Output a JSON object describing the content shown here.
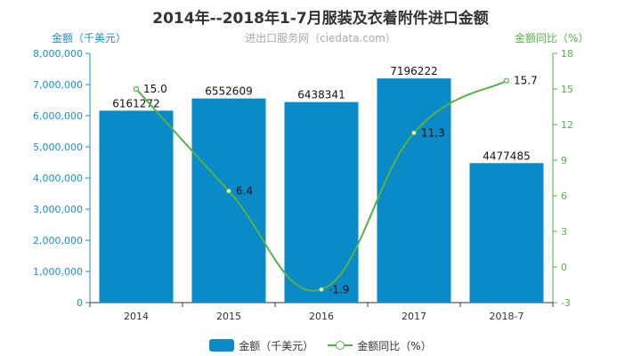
{
  "chart_data": {
    "type": "bar+line",
    "title": "2014年--2018年1-7月服装及衣着附件进口金额",
    "subtitle": "进出口服务网（ciedata.com）",
    "categories": [
      "2014",
      "2015",
      "2016",
      "2017",
      "2018-7"
    ],
    "series": [
      {
        "name": "金额（千美元）",
        "type": "bar",
        "axis": "left",
        "values": [
          6161272,
          6552609,
          6438341,
          7196222,
          4477485
        ]
      },
      {
        "name": "金额同比（%）",
        "type": "line",
        "axis": "right",
        "values": [
          15.0,
          6.4,
          -1.9,
          11.3,
          15.7
        ]
      }
    ],
    "bar_labels": [
      "6161272",
      "6552609",
      "6438341",
      "7196222",
      "4477485"
    ],
    "line_labels": [
      "15.0",
      "6.4",
      "-1.9",
      "11.3",
      "15.7"
    ],
    "y_left": {
      "label": "金额（千美元）",
      "ylim": [
        0,
        8000000
      ],
      "ticks": [
        "0",
        "1,000,000",
        "2,000,000",
        "3,000,000",
        "4,000,000",
        "5,000,000",
        "6,000,000",
        "7,000,000",
        "8,000,000"
      ]
    },
    "y_right": {
      "label": "金额同比（%）",
      "ylim": [
        -3,
        18
      ],
      "ticks": [
        "-3",
        "0",
        "3",
        "6",
        "9",
        "12",
        "15",
        "18"
      ]
    },
    "grid": false,
    "legend_position": "bottom-center",
    "colors": {
      "bar": "#0a8ac6",
      "line": "#55b24a",
      "left_axis": "#1a8fc8",
      "right_axis": "#55b24a"
    }
  }
}
